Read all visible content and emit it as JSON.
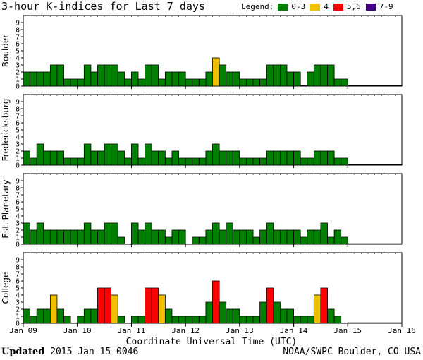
{
  "title": "3-hour K-indices for Last 7 days",
  "legend": {
    "label": "Legend:",
    "items": [
      {
        "label": "0-3",
        "color": "#008000"
      },
      {
        "label": "4",
        "color": "#f0c000"
      },
      {
        "label": "5,6",
        "color": "#ff0000"
      },
      {
        "label": "7-9",
        "color": "#400080"
      }
    ]
  },
  "footer": {
    "updated_label": "Updated",
    "updated_value": "2015 Jan 15 0046",
    "credit": "NOAA/SWPC Boulder, CO USA"
  },
  "chart_data": {
    "type": "bar",
    "xlabel": "Coordinate Universal Time (UTC)",
    "x_ticks": [
      "Jan 09",
      "Jan 10",
      "Jan 11",
      "Jan 12",
      "Jan 13",
      "Jan 14",
      "Jan 15",
      "Jan 16"
    ],
    "ylim": [
      0,
      9
    ],
    "y_ticks": [
      0,
      1,
      2,
      3,
      4,
      5,
      6,
      7,
      8,
      9
    ],
    "interval_hours": 3,
    "color_scale": {
      "0-3": "#008000",
      "4": "#f0c000",
      "5,6": "#ff0000",
      "7-9": "#400080"
    },
    "panels": [
      {
        "name": "Boulder",
        "values": [
          2,
          2,
          2,
          2,
          3,
          3,
          1,
          1,
          1,
          3,
          2,
          3,
          3,
          3,
          2,
          1,
          2,
          1,
          3,
          3,
          1,
          2,
          2,
          2,
          1,
          1,
          1,
          2,
          4,
          3,
          2,
          2,
          1,
          1,
          1,
          1,
          3,
          3,
          3,
          2,
          2,
          0,
          2,
          3,
          3,
          3,
          1,
          1
        ]
      },
      {
        "name": "Fredericksburg",
        "values": [
          2,
          1,
          3,
          2,
          2,
          2,
          1,
          1,
          1,
          3,
          2,
          2,
          3,
          3,
          2,
          1,
          3,
          1,
          3,
          2,
          2,
          1,
          2,
          1,
          1,
          1,
          1,
          2,
          3,
          2,
          2,
          2,
          1,
          1,
          1,
          1,
          2,
          2,
          2,
          2,
          2,
          1,
          1,
          2,
          2,
          2,
          1,
          1
        ]
      },
      {
        "name": "Est. Planetary",
        "values": [
          3,
          2,
          3,
          2,
          2,
          2,
          2,
          2,
          2,
          3,
          2,
          2,
          3,
          3,
          1,
          0,
          3,
          2,
          3,
          2,
          2,
          1,
          2,
          2,
          0,
          1,
          1,
          2,
          3,
          2,
          3,
          2,
          2,
          2,
          1,
          2,
          3,
          2,
          2,
          2,
          2,
          1,
          2,
          2,
          3,
          1,
          2,
          1
        ]
      },
      {
        "name": "College",
        "values": [
          2,
          1,
          2,
          2,
          4,
          2,
          1,
          0,
          1,
          2,
          2,
          5,
          5,
          4,
          1,
          0,
          1,
          1,
          5,
          5,
          4,
          2,
          1,
          1,
          1,
          1,
          1,
          3,
          6,
          3,
          2,
          2,
          1,
          1,
          1,
          3,
          5,
          3,
          2,
          2,
          1,
          1,
          1,
          4,
          5,
          2,
          1,
          0
        ]
      }
    ]
  }
}
